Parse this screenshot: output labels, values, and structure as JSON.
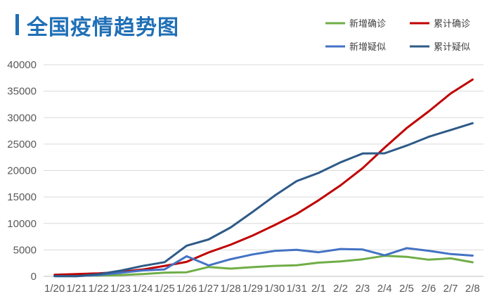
{
  "chart_data": {
    "type": "line",
    "title": "全国疫情趋势图",
    "xlabel": "",
    "ylabel": "",
    "ylim": [
      0,
      40000
    ],
    "yticks": [
      0,
      5000,
      10000,
      15000,
      20000,
      25000,
      30000,
      35000,
      40000
    ],
    "grid": true,
    "legend_position": "top-right",
    "categories": [
      "1/20",
      "1/21",
      "1/22",
      "1/23",
      "1/24",
      "1/25",
      "1/26",
      "1/27",
      "1/28",
      "1/29",
      "1/30",
      "1/31",
      "2/1",
      "2/2",
      "2/3",
      "2/4",
      "2/5",
      "2/6",
      "2/7",
      "2/8"
    ],
    "series": [
      {
        "name": "新增确诊",
        "color": "#70ad47",
        "values": [
          77,
          149,
          131,
          259,
          444,
          688,
          769,
          1771,
          1459,
          1737,
          1982,
          2102,
          2590,
          2829,
          3235,
          3887,
          3694,
          3143,
          3399,
          2656
        ]
      },
      {
        "name": "累计确诊",
        "color": "#c00000",
        "values": [
          291,
          440,
          571,
          830,
          1287,
          1975,
          2744,
          4515,
          5974,
          7711,
          9692,
          11791,
          14380,
          17205,
          20438,
          24324,
          28018,
          31161,
          34546,
          37198
        ]
      },
      {
        "name": "新增疑似",
        "color": "#4472c4",
        "values": [
          27,
          26,
          257,
          680,
          1118,
          1309,
          3806,
          2077,
          3248,
          4148,
          4812,
          5019,
          4562,
          5173,
          5072,
          3971,
          5328,
          4833,
          4214,
          3916
        ]
      },
      {
        "name": "累计疑似",
        "color": "#2e5a87",
        "values": [
          54,
          37,
          393,
          1072,
          1965,
          2684,
          5794,
          6973,
          9239,
          12167,
          15238,
          17988,
          19544,
          21558,
          23214,
          23260,
          24702,
          26359,
          27657,
          28942
        ]
      }
    ]
  },
  "accent": "#1f6fb6"
}
